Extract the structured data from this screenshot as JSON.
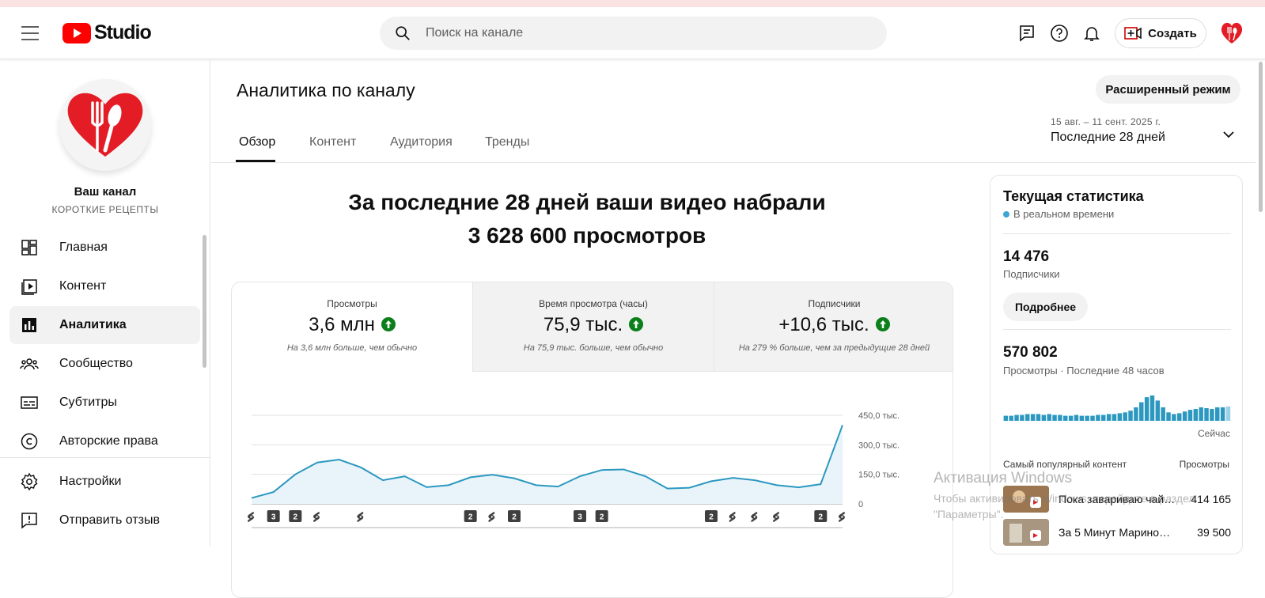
{
  "header": {
    "logo_text": "Studio",
    "search_placeholder": "Поиск на канале",
    "create_label": "Создать"
  },
  "sidebar": {
    "channel_name": "Ваш канал",
    "channel_subtitle": "КОРОТКИЕ РЕЦЕПТЫ",
    "items": [
      {
        "label": "Главная",
        "icon": "dashboard-icon"
      },
      {
        "label": "Контент",
        "icon": "content-icon"
      },
      {
        "label": "Аналитика",
        "icon": "analytics-icon",
        "active": true
      },
      {
        "label": "Сообщество",
        "icon": "community-icon"
      },
      {
        "label": "Субтитры",
        "icon": "subtitles-icon"
      },
      {
        "label": "Авторские права",
        "icon": "copyright-icon"
      }
    ],
    "bottom_items": [
      {
        "label": "Настройки",
        "icon": "settings-icon"
      },
      {
        "label": "Отправить отзыв",
        "icon": "feedback-icon"
      }
    ]
  },
  "main": {
    "title": "Аналитика по каналу",
    "advanced_mode_label": "Расширенный режим",
    "tabs": [
      "Обзор",
      "Контент",
      "Аудитория",
      "Тренды"
    ],
    "active_tab": "Обзор",
    "date_range": "15 авг. – 11 сент. 2025 г.",
    "date_label": "Последние 28 дней",
    "headline_line1": "За последние 28 дней ваши видео набрали",
    "headline_line2": "3 628 600 просмотров",
    "metrics": [
      {
        "title": "Просмотры",
        "value": "3,6 млн",
        "note": "На 3,6 млн больше, чем обычно"
      },
      {
        "title": "Время просмотра (часы)",
        "value": "75,9 тыс.",
        "note": "На 75,9 тыс. больше, чем обычно"
      },
      {
        "title": "Подписчики",
        "value": "+10,6 тыс.",
        "note": "На 279 % больше, чем за предыдущие 28 дней"
      }
    ]
  },
  "chart_data": {
    "type": "area",
    "title": "",
    "xlabel": "",
    "ylabel": "",
    "ylim": [
      0,
      450000
    ],
    "y_ticks": [
      "450,0 тыс.",
      "300,0 тыс.",
      "150,0 тыс.",
      "0"
    ],
    "series": [
      {
        "values": [
          30000,
          60000,
          150000,
          210000,
          225000,
          185000,
          120000,
          140000,
          85000,
          95000,
          135000,
          148000,
          130000,
          95000,
          88000,
          140000,
          172000,
          175000,
          140000,
          78000,
          82000,
          115000,
          132000,
          120000,
          95000,
          84000,
          100000,
          400000
        ]
      }
    ],
    "markers": [
      "S",
      "3",
      "2",
      "S",
      "",
      "S",
      "",
      "",
      "",
      "",
      "2",
      "S",
      "2",
      "",
      "",
      "3",
      "2",
      "",
      "",
      "",
      "",
      "2",
      "S",
      "S",
      "S",
      "",
      "2",
      "S"
    ],
    "color": "#2c98c0",
    "fill": "#e8f4f9"
  },
  "realtime": {
    "title": "Текущая статистика",
    "live_label": "В реальном времени",
    "subscribers_value": "14 476",
    "subscribers_label": "Подписчики",
    "more_label": "Подробнее",
    "views_value": "570 802",
    "views_label": "Просмотры · Последние 48 часов",
    "now_label": "Сейчас",
    "spark": [
      6,
      6,
      7,
      7,
      8,
      8,
      8,
      7,
      8,
      7,
      7,
      6,
      6,
      7,
      6,
      6,
      6,
      7,
      7,
      8,
      8,
      9,
      10,
      12,
      16,
      22,
      28,
      30,
      24,
      16,
      10,
      8,
      9,
      11,
      13,
      14,
      16,
      15,
      14,
      16,
      16,
      17
    ],
    "popular_header": "Самый популярный контент",
    "popular_views_header": "Просмотры",
    "popular": [
      {
        "title": "Пока завариваю чай,...",
        "views": "414 165"
      },
      {
        "title": "За 5 Минут Маринова...",
        "views": "39 500"
      }
    ]
  },
  "watermark": {
    "line1": "Активация Windows",
    "line2": "Чтобы активировать Windows, перейдите в раздел",
    "line3": "\"Параметры\"."
  }
}
